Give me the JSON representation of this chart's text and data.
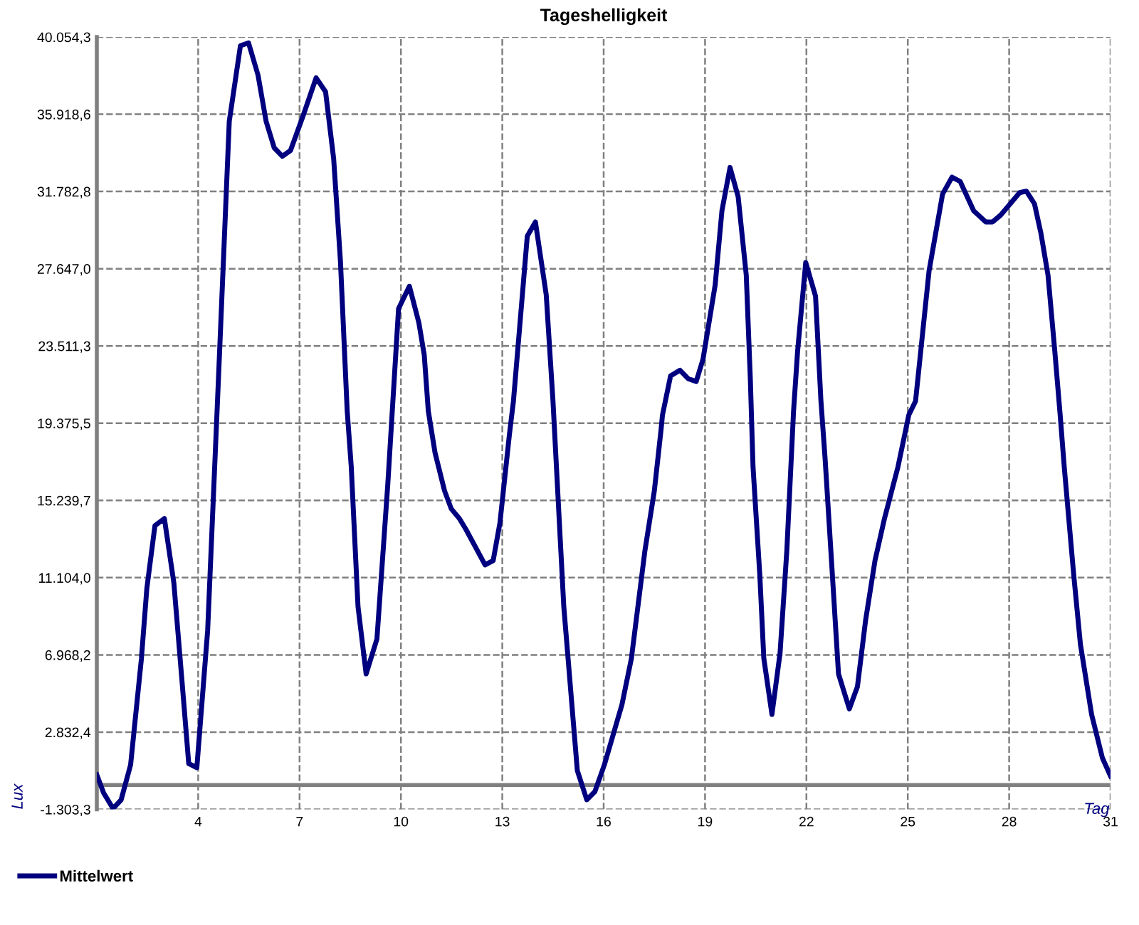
{
  "chart_data": {
    "type": "line",
    "title": "Tageshelligkeit",
    "xlabel": "Tag",
    "ylabel": "Lux",
    "series": [
      {
        "name": "Mittelwert",
        "color": "#00007f",
        "x": [
          1.0,
          1.2,
          1.48,
          1.72,
          2.0,
          2.32,
          2.48,
          2.72,
          3.0,
          3.28,
          3.52,
          3.72,
          3.96,
          4.28,
          4.6,
          4.92,
          5.25,
          5.49,
          5.77,
          6.01,
          6.25,
          6.49,
          6.73,
          7.09,
          7.49,
          7.77,
          8.01,
          8.21,
          8.41,
          8.53,
          8.73,
          8.97,
          9.29,
          9.61,
          9.93,
          10.25,
          10.53,
          10.69,
          10.81,
          11.01,
          11.29,
          11.49,
          11.73,
          11.93,
          12.49,
          12.73,
          12.93,
          13.21,
          13.33,
          13.74,
          13.98,
          14.3,
          14.5,
          14.82,
          15.22,
          15.5,
          15.74,
          16.02,
          16.54,
          16.82,
          17.22,
          17.5,
          17.7,
          17.74,
          17.98,
          18.26,
          18.5,
          18.74,
          18.94,
          19.3,
          19.5,
          19.74,
          19.98,
          20.22,
          20.34,
          20.42,
          20.62,
          20.74,
          20.98,
          21.22,
          21.42,
          21.62,
          21.74,
          21.98,
          22.27,
          22.43,
          22.55,
          22.75,
          22.95,
          23.27,
          23.51,
          23.75,
          24.03,
          24.31,
          24.71,
          25.03,
          25.23,
          25.63,
          26.03,
          26.31,
          26.55,
          26.95,
          27.31,
          27.51,
          27.75,
          28.03,
          28.31,
          28.51,
          28.75,
          28.94,
          29.15,
          29.35,
          29.51,
          29.63,
          29.91,
          30.11,
          30.44,
          30.76,
          31.0
        ],
        "values": [
          550,
          -420,
          -1260,
          -790,
          1080,
          6770,
          10520,
          13890,
          14270,
          10820,
          5580,
          1150,
          930,
          8270,
          21760,
          35540,
          39590,
          39740,
          38020,
          35540,
          34120,
          33670,
          33970,
          35760,
          37870,
          37120,
          33520,
          28050,
          20030,
          17040,
          9550,
          5950,
          7820,
          16070,
          25510,
          26710,
          24760,
          23030,
          20030,
          17790,
          15760,
          14790,
          14270,
          13670,
          11790,
          12020,
          14040,
          18760,
          20560,
          29400,
          30150,
          26250,
          20560,
          9550,
          780,
          -790,
          -350,
          1080,
          4300,
          6770,
          12540,
          15760,
          19060,
          19810,
          21910,
          22210,
          21760,
          21610,
          22800,
          26780,
          30750,
          33070,
          31500,
          27300,
          21760,
          17040,
          11270,
          6770,
          3780,
          7070,
          12540,
          20040,
          23250,
          27980,
          26180,
          20560,
          17560,
          11790,
          5950,
          4080,
          5270,
          8800,
          12020,
          14270,
          17040,
          19810,
          20560,
          27530,
          31650,
          32550,
          32320,
          30750,
          30150,
          30150,
          30520,
          31120,
          31720,
          31800,
          31120,
          29550,
          27300,
          23250,
          19810,
          17040,
          11270,
          7520,
          3780,
          1450,
          480
        ]
      }
    ],
    "xlim": [
      1,
      31
    ],
    "xticks": [
      4,
      7,
      10,
      13,
      16,
      19,
      22,
      25,
      28,
      31
    ],
    "ylim": [
      -1303.3,
      40054.3
    ],
    "yticks": [
      {
        "value": -1303.3,
        "label": "-1.303,3"
      },
      {
        "value": 2832.4,
        "label": "2.832,4"
      },
      {
        "value": 6968.2,
        "label": "6.968,2"
      },
      {
        "value": 11104.0,
        "label": "11.104,0"
      },
      {
        "value": 15239.7,
        "label": "15.239,7"
      },
      {
        "value": 19375.5,
        "label": "19.375,5"
      },
      {
        "value": 23511.3,
        "label": "23.511,3"
      },
      {
        "value": 27647.0,
        "label": "27.647,0"
      },
      {
        "value": 31782.8,
        "label": "31.782,8"
      },
      {
        "value": 35918.6,
        "label": "35.918,6"
      },
      {
        "value": 40054.3,
        "label": "40.054,3"
      }
    ],
    "ref_lines": [
      {
        "axis": "y",
        "value": 0,
        "color": "#808080"
      }
    ],
    "grid": true,
    "legend": "bottom left",
    "marker": "none",
    "line_style": "solid"
  }
}
